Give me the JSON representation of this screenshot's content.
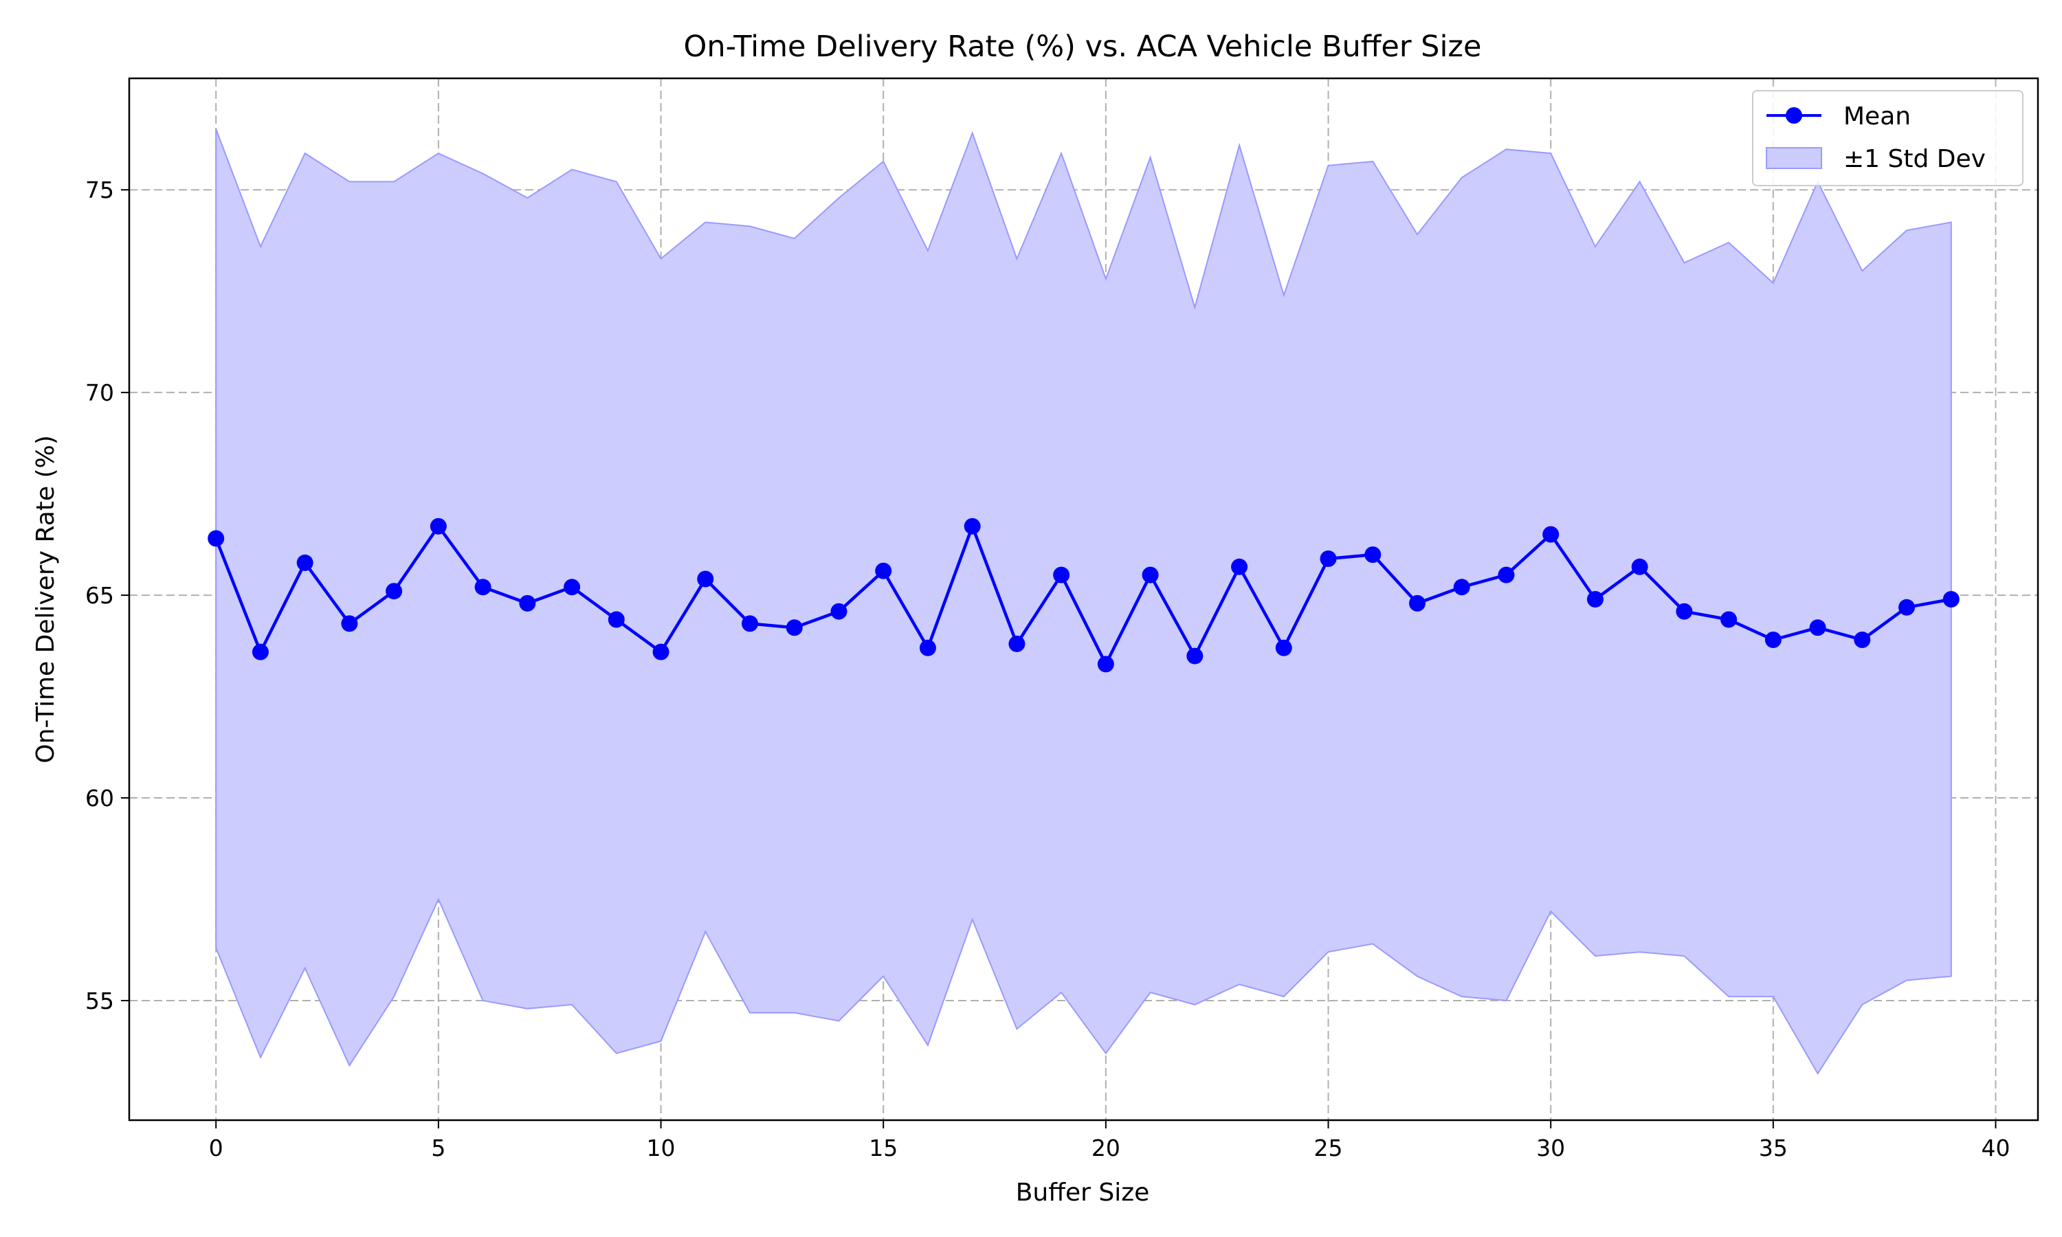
{
  "chart_data": {
    "type": "line",
    "title": "On-Time Delivery Rate (%) vs. ACA Vehicle Buffer Size",
    "xlabel": "Buffer Size",
    "ylabel": "On-Time Delivery Rate (%)",
    "xlim": [
      -1.95,
      40.95
    ],
    "ylim": [
      52.05,
      77.75
    ],
    "xticks": [
      0,
      5,
      10,
      15,
      20,
      25,
      30,
      35,
      40
    ],
    "yticks": [
      55,
      60,
      65,
      70,
      75
    ],
    "grid": true,
    "legend_position": "top-right",
    "colors": {
      "line": "#0000ff",
      "band_fill": "#ccccff",
      "band_edge": "#9a9aff",
      "grid": "#b0b0b0"
    },
    "x": [
      0,
      1,
      2,
      3,
      4,
      5,
      6,
      7,
      8,
      9,
      10,
      11,
      12,
      13,
      14,
      15,
      16,
      17,
      18,
      19,
      20,
      21,
      22,
      23,
      24,
      25,
      26,
      27,
      28,
      29,
      30,
      31,
      32,
      33,
      34,
      35,
      36,
      37,
      38,
      39
    ],
    "series": [
      {
        "name": "Mean",
        "values": [
          66.4,
          63.6,
          65.8,
          64.3,
          65.1,
          66.7,
          65.2,
          64.8,
          65.2,
          64.4,
          63.6,
          65.4,
          64.3,
          64.2,
          64.6,
          65.6,
          63.7,
          66.7,
          63.8,
          65.5,
          63.3,
          65.5,
          63.5,
          65.7,
          63.7,
          65.9,
          66.0,
          64.8,
          65.2,
          65.5,
          66.5,
          64.9,
          65.7,
          64.6,
          64.4,
          63.9,
          64.2,
          63.9,
          64.7,
          64.9
        ]
      }
    ],
    "band": {
      "name": "±1 Std Dev",
      "upper": [
        76.5,
        73.6,
        75.9,
        75.2,
        75.2,
        75.9,
        75.4,
        74.8,
        75.5,
        75.2,
        73.3,
        74.2,
        74.1,
        73.8,
        74.8,
        75.7,
        73.5,
        76.4,
        73.3,
        75.9,
        72.8,
        75.8,
        72.1,
        76.1,
        72.4,
        75.6,
        75.7,
        73.9,
        75.3,
        76.0,
        75.9,
        73.6,
        75.2,
        73.2,
        73.7,
        72.7,
        75.2,
        73.0,
        74.0,
        74.2
      ],
      "lower": [
        56.3,
        53.6,
        55.8,
        53.4,
        55.1,
        57.5,
        55.0,
        54.8,
        54.9,
        53.7,
        54.0,
        56.7,
        54.7,
        54.7,
        54.5,
        55.6,
        53.9,
        57.0,
        54.3,
        55.2,
        53.7,
        55.2,
        54.9,
        55.4,
        55.1,
        56.2,
        56.4,
        55.6,
        55.1,
        55.0,
        57.2,
        56.1,
        56.2,
        56.1,
        55.1,
        55.1,
        53.2,
        54.9,
        55.5,
        55.6
      ]
    }
  }
}
